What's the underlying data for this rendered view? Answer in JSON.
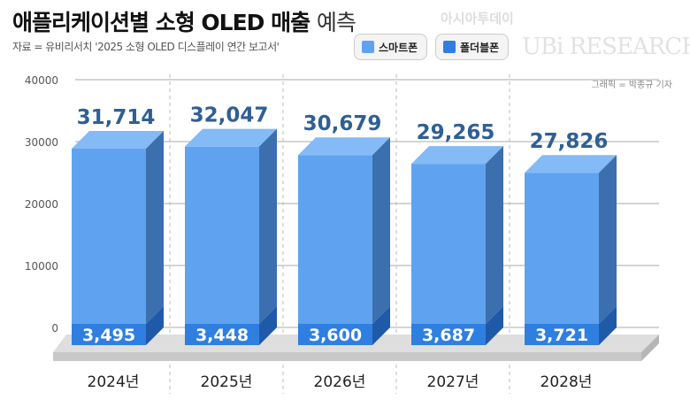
{
  "title": {
    "bold": "애플리케이션별 소형 OLED 매출",
    "light": "예측"
  },
  "source": "자료 = 유비리서치 '2025 소형 OLED 디스플레이 연간 보고서'",
  "watermarks": {
    "outlet": "아시아투데이",
    "logo": "UBi RESEARCH"
  },
  "credit": "그래픽 = 박종규 기자",
  "chart_data": {
    "type": "bar",
    "categories": [
      "2024년",
      "2025년",
      "2026년",
      "2027년",
      "2028년"
    ],
    "series": [
      {
        "name": "스마트폰",
        "values": [
          31714,
          32047,
          30679,
          29265,
          27826
        ],
        "labels": [
          "31,714",
          "32,047",
          "30,679",
          "29,265",
          "27,826"
        ],
        "color": "#5fa3f0"
      },
      {
        "name": "폴더블폰",
        "values": [
          3495,
          3448,
          3600,
          3687,
          3721
        ],
        "labels": [
          "3,495",
          "3,448",
          "3,600",
          "3,687",
          "3,721"
        ],
        "color": "#2f7fe0"
      }
    ],
    "yticks": [
      "0",
      "10000",
      "20000",
      "30000",
      "40000"
    ],
    "ylim": [
      0,
      40000
    ],
    "grid": true,
    "legend": "top"
  }
}
